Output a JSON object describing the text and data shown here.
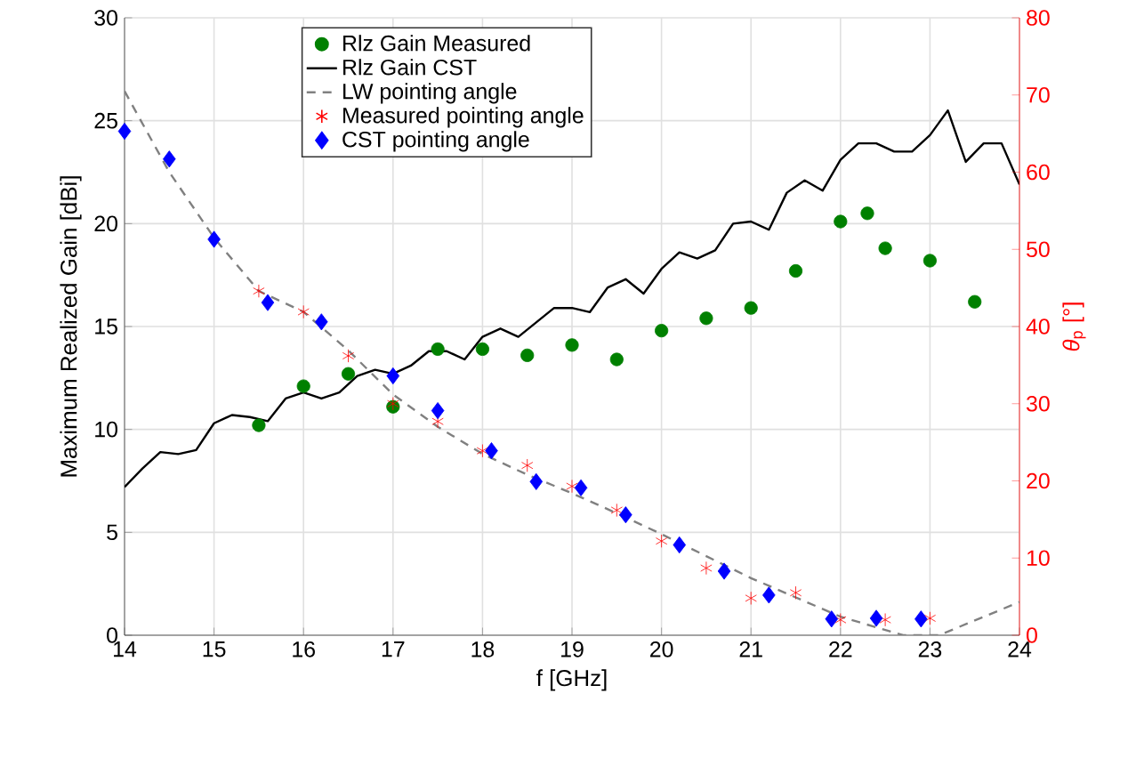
{
  "chart_data": {
    "type": "line",
    "xlabel": "f [GHz]",
    "ylabel": "Maximum Realized Gain [dBi]",
    "y2label": "*θ*$_{p}$ [°]",
    "xlim": [
      14,
      24
    ],
    "xticks": [
      14,
      15,
      16,
      17,
      18,
      19,
      20,
      21,
      22,
      23,
      24
    ],
    "ylim": [
      0,
      30
    ],
    "yticks": [
      0,
      5,
      10,
      15,
      20,
      25,
      30
    ],
    "y2lim": [
      0,
      80
    ],
    "y2ticks": [
      0,
      10,
      20,
      30,
      40,
      50,
      60,
      70,
      80
    ],
    "grid": true,
    "legend": "top",
    "series": [
      {
        "name": "Rlz Gain Measured",
        "type": "scatter",
        "marker": "circle",
        "color": "#008000",
        "x": [
          15.5,
          16,
          16.5,
          17,
          17.5,
          18,
          18.5,
          19,
          19.5,
          20,
          20.5,
          21,
          21.5,
          22,
          22.3,
          22.5,
          23,
          23.5
        ],
        "values": [
          10.2,
          12.1,
          12.7,
          11.1,
          13.9,
          13.9,
          13.6,
          14.1,
          13.4,
          14.8,
          15.4,
          15.9,
          17.7,
          20.1,
          20.5,
          18.8,
          18.2,
          16.2
        ]
      },
      {
        "name": "Rlz Gain CST",
        "marker": "none",
        "line_style": "solid",
        "color": "#000000",
        "x": [
          14,
          14.2,
          14.4,
          14.6,
          14.8,
          15,
          15.2,
          15.4,
          15.6,
          15.8,
          16,
          16.2,
          16.4,
          16.6,
          16.8,
          17,
          17.2,
          17.4,
          17.6,
          17.8,
          18,
          18.2,
          18.4,
          18.6,
          18.8,
          19,
          19.2,
          19.4,
          19.6,
          19.8,
          20,
          20.2,
          20.4,
          20.6,
          20.8,
          21,
          21.2,
          21.4,
          21.6,
          21.8,
          22,
          22.2,
          22.4,
          22.6,
          22.8,
          23,
          23.2,
          23.4,
          23.6,
          23.8,
          24
        ],
        "values": [
          7.2,
          8.1,
          8.9,
          8.8,
          9.0,
          10.3,
          10.7,
          10.6,
          10.4,
          11.5,
          11.8,
          11.5,
          11.8,
          12.6,
          12.9,
          12.7,
          13.1,
          13.8,
          13.8,
          13.4,
          14.5,
          14.9,
          14.5,
          15.2,
          15.9,
          15.9,
          15.7,
          16.9,
          17.3,
          16.6,
          17.8,
          18.6,
          18.3,
          18.7,
          20.0,
          20.1,
          19.7,
          21.5,
          22.1,
          21.6,
          23.1,
          23.9,
          23.9,
          23.5,
          23.5,
          24.3,
          25.5,
          23.0,
          23.9,
          23.9,
          21.9
        ]
      },
      {
        "name": "LW pointing angle",
        "axis": "y2",
        "marker": "none",
        "line_style": "dashed",
        "color": "#808080",
        "x": [
          14,
          14.5,
          15,
          15.5,
          16,
          16.5,
          17,
          17.5,
          18,
          18.5,
          19,
          19.5,
          20,
          21,
          22,
          22.7,
          23.1,
          24
        ],
        "values": [
          70.5,
          60.0,
          51.5,
          44.6,
          41.9,
          36.9,
          31.2,
          27.0,
          23.5,
          20.8,
          18.4,
          15.8,
          13.1,
          7.4,
          2.4,
          0,
          0,
          4.3
        ]
      },
      {
        "name": "Measured pointing angle",
        "type": "scatter",
        "axis": "y2",
        "marker": "cross",
        "color": "#ff0000",
        "x": [
          15.5,
          16,
          16.5,
          17,
          17.5,
          18,
          18.5,
          19,
          19.5,
          20,
          20.5,
          21,
          21.5,
          22,
          22.5,
          23
        ],
        "values": [
          44.6,
          41.9,
          36.2,
          30.0,
          27.7,
          23.9,
          22.0,
          19.3,
          16.2,
          12.2,
          8.7,
          4.8,
          5.5,
          2.0,
          2.0,
          2.2
        ]
      },
      {
        "name": "CST pointing angle",
        "type": "scatter",
        "axis": "y2",
        "marker": "diamond",
        "color": "#0000ff",
        "x": [
          14,
          14.5,
          15,
          15.6,
          16.2,
          17,
          17.5,
          18.1,
          18.6,
          19.1,
          19.6,
          20.2,
          20.7,
          21.2,
          21.9,
          22.4,
          22.9
        ],
        "values": [
          65.3,
          61.7,
          51.3,
          43.1,
          40.6,
          33.6,
          29.1,
          23.9,
          19.9,
          19.1,
          15.6,
          11.7,
          8.3,
          5.2,
          2.1,
          2.2,
          2.1
        ]
      }
    ]
  }
}
